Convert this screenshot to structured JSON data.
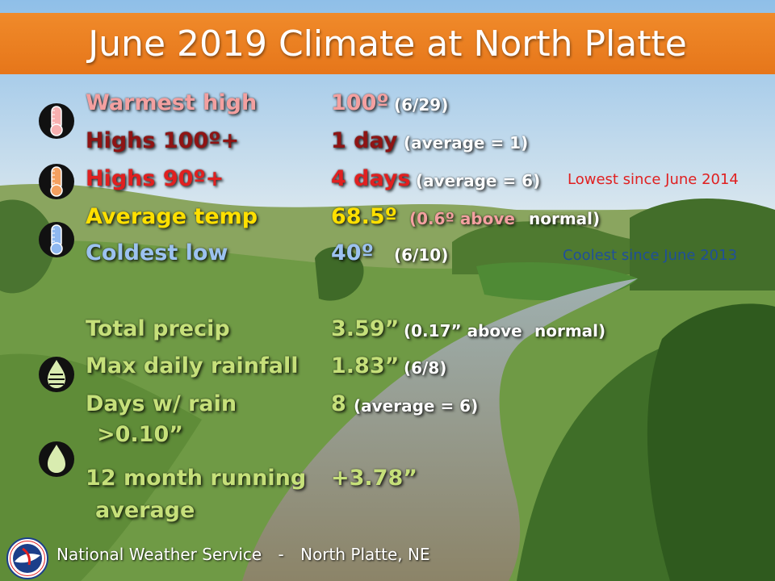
{
  "title": "June 2019 Climate at North Platte",
  "colors": {
    "title_bar": "#e8781c",
    "warmest": "#f3a0a0",
    "dark_red": "#8e1414",
    "red": "#e02020",
    "yellow": "#ffe000",
    "blue": "#9cc2f0",
    "green": "#c6e07a",
    "white": "#ffffff",
    "note_red": "#e02020",
    "note_blue": "#1f4f9a"
  },
  "temperature": {
    "warmest_high": {
      "label": "Warmest high",
      "value": "100º",
      "detail": "(6/29)"
    },
    "highs_100": {
      "label": "Highs 100º+",
      "value": "1 day",
      "detail": "(average = 1)"
    },
    "highs_90": {
      "label": "Highs 90º+",
      "value": "4 days",
      "detail": "(average = 6)",
      "note": "Lowest since June 2014"
    },
    "average_temp": {
      "label": "Average temp",
      "value": "68.5º",
      "detail_anomaly": "(0.6º above",
      "detail_word": "normal)"
    },
    "coldest_low": {
      "label": "Coldest low",
      "value": "40º",
      "detail": "(6/10)",
      "note": "Coolest since June 2013"
    }
  },
  "precipitation": {
    "total_precip": {
      "label": "Total precip",
      "value": "3.59”",
      "detail_anomaly": "(0.17” above",
      "detail_word": "normal)"
    },
    "max_daily": {
      "label": "Max daily rainfall",
      "value": "1.83”",
      "detail": "(6/8)"
    },
    "days_rain": {
      "label_line1": "Days w/ rain",
      "label_line2": ">0.10”",
      "value": "8",
      "detail": "(average = 6)"
    },
    "running_avg": {
      "label_line1": "12 month running",
      "label_line2": "average",
      "value": "+3.78”"
    }
  },
  "icons": [
    "thermometer-hot-icon",
    "thermometer-warm-icon",
    "thermometer-cold-icon",
    "rain-drop-striped-icon",
    "rain-drop-icon",
    "nws-logo-icon"
  ],
  "footer": {
    "agency": "National Weather Service",
    "separator": "-",
    "office": "North Platte, NE"
  }
}
